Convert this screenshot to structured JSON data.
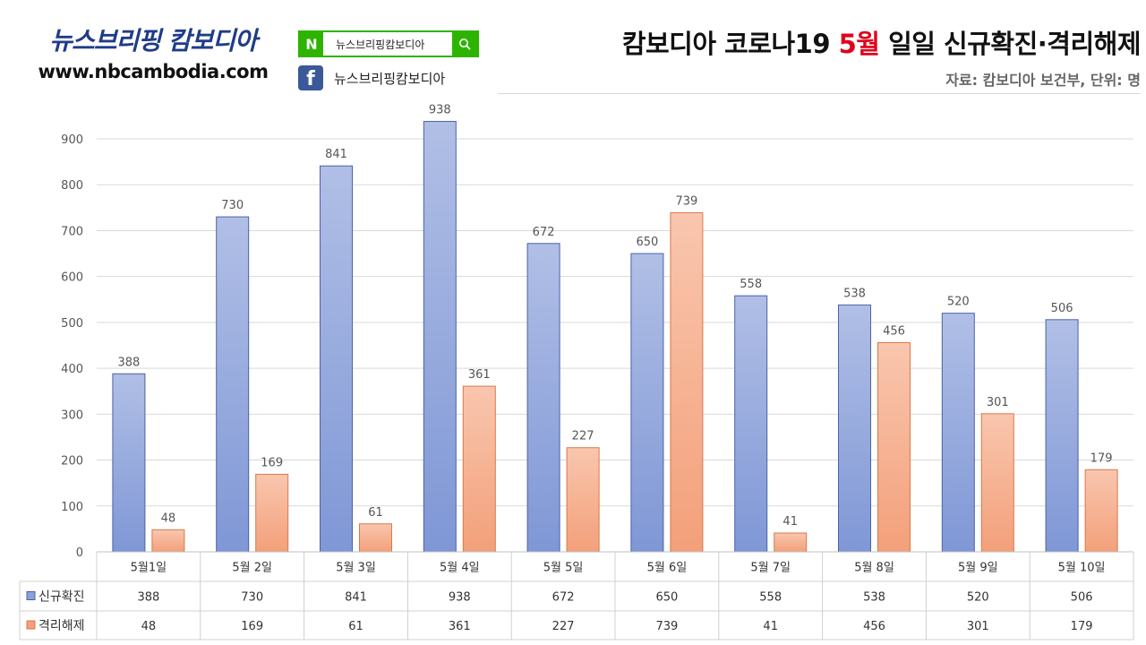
{
  "brand": {
    "name": "뉴스브리핑 캄보디아",
    "url": "www.nbcambodia.com"
  },
  "social": {
    "naver_logo": "N",
    "naver_text": "뉴스브리핑캄보디아",
    "facebook_logo": "f",
    "facebook_text": "뉴스브리핑캄보디아"
  },
  "header": {
    "title_before": "캄보디아 코로나19 ",
    "title_highlight": "5월",
    "title_after": " 일일 신규확진·격리해제",
    "source": "자료: 캄보디아 보건부, 단위: 명"
  },
  "colors": {
    "brand": "#1f3c88",
    "naver_green": "#2db400",
    "facebook_blue": "#3b5998",
    "title_highlight": "#e0001b",
    "series_new": "#8aa0d8",
    "series_released": "#f5a07a"
  },
  "chart_data": {
    "type": "bar",
    "categories": [
      "5월1일",
      "5월 2일",
      "5월 3일",
      "5월 4일",
      "5월 5일",
      "5월 6일",
      "5월 7일",
      "5월 8일",
      "5월 9일",
      "5월 10일"
    ],
    "series": [
      {
        "name": "신규확진",
        "values": [
          388,
          730,
          841,
          938,
          672,
          650,
          558,
          538,
          520,
          506
        ],
        "color": "#8aa0d8"
      },
      {
        "name": "격리해제",
        "values": [
          48,
          169,
          61,
          361,
          227,
          739,
          41,
          456,
          301,
          179
        ],
        "color": "#f5a07a"
      }
    ],
    "ylim": [
      0,
      900
    ],
    "yticks": [
      0,
      100,
      200,
      300,
      400,
      500,
      600,
      700,
      800,
      900
    ],
    "grid": true,
    "data_table": true
  }
}
